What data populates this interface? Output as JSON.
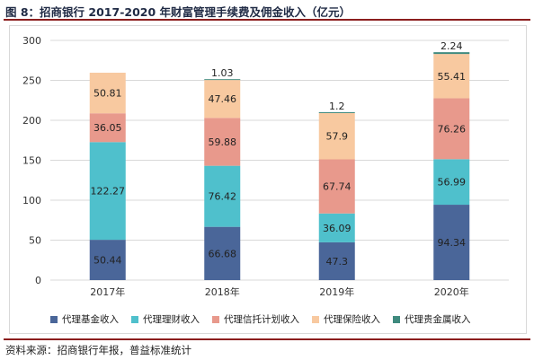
{
  "title": "图 8：招商银行 2017-2020 年财富管理手续费及佣金收入（亿元）",
  "source": "资料来源：招商银行年报，普益标准统计",
  "colors": {
    "fund": "#4a6699",
    "wealth": "#4fc0cc",
    "trust": "#e8998c",
    "insurance": "#f8c9a0",
    "metal": "#3f8a7e",
    "frame": "#d9d9d9",
    "grid": "#d9d9d9",
    "rule": "#8b1d1d"
  },
  "chart_data": {
    "type": "bar",
    "stacked": true,
    "categories": [
      "2017年",
      "2018年",
      "2019年",
      "2020年"
    ],
    "ylim": [
      0,
      300
    ],
    "yticks": [
      0,
      50,
      100,
      150,
      200,
      250,
      300
    ],
    "grid": true,
    "legend_position": "bottom",
    "series": [
      {
        "name": "代理基金收入",
        "color_key": "fund",
        "values": [
          50.44,
          66.68,
          47.3,
          94.34
        ],
        "labels": [
          "50.44",
          "66.68",
          "47.3",
          "94.34"
        ]
      },
      {
        "name": "代理理财收入",
        "color_key": "wealth",
        "values": [
          122.27,
          76.42,
          36.09,
          56.99
        ],
        "labels": [
          "122.27",
          "76.42",
          "36.09",
          "56.99"
        ]
      },
      {
        "name": "代理信托计划收入",
        "color_key": "trust",
        "values": [
          36.05,
          59.88,
          67.74,
          76.26
        ],
        "labels": [
          "36.05",
          "59.88",
          "67.74",
          "76.26"
        ]
      },
      {
        "name": "代理保险收入",
        "color_key": "insurance",
        "values": [
          50.81,
          47.46,
          57.9,
          55.41
        ],
        "labels": [
          "50.81",
          "47.46",
          "57.9",
          "55.41"
        ]
      },
      {
        "name": "代理贵金属收入",
        "color_key": "metal",
        "values": [
          0,
          1.03,
          1.2,
          2.24
        ],
        "labels": [
          "",
          "1.03",
          "1.2",
          "2.24"
        ]
      }
    ]
  }
}
